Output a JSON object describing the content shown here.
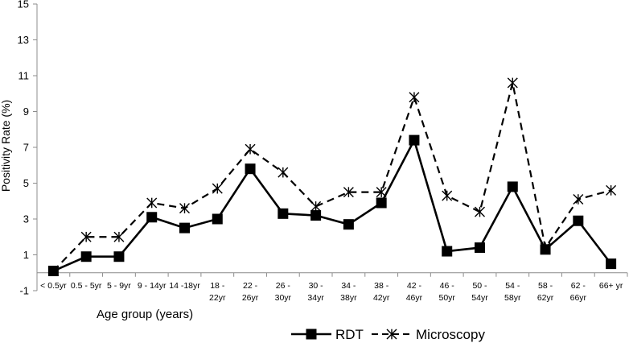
{
  "chart_data": {
    "type": "line",
    "title": "",
    "xlabel": "Age group (years)",
    "ylabel": "Positivity Rate (%)",
    "ylim": [
      -1,
      15
    ],
    "yticks": [
      -1,
      1,
      3,
      5,
      7,
      9,
      11,
      13,
      15
    ],
    "grid": false,
    "legend_position": "bottom",
    "categories": [
      [
        "< 0.5yr"
      ],
      [
        "0.5 - 5yr"
      ],
      [
        "5 - 9yr"
      ],
      [
        "9 - 14yr"
      ],
      [
        "14 -18yr"
      ],
      [
        "18 -",
        "22yr"
      ],
      [
        "22 -",
        "26yr"
      ],
      [
        "26 -",
        "30yr"
      ],
      [
        "30 -",
        "34yr"
      ],
      [
        "34 -",
        "38yr"
      ],
      [
        "38 -",
        "42yr"
      ],
      [
        "42 -",
        "46yr"
      ],
      [
        "46 -",
        "50yr"
      ],
      [
        "50 -",
        "54yr"
      ],
      [
        "54 -",
        "58yr"
      ],
      [
        "58 -",
        "62yr"
      ],
      [
        "62 -",
        "66yr"
      ],
      [
        "66+ yr"
      ]
    ],
    "series": [
      {
        "name": "RDT",
        "style": "solid",
        "marker": "square",
        "color": "#000000",
        "values": [
          0.1,
          0.9,
          0.9,
          3.1,
          2.5,
          3.0,
          5.8,
          3.3,
          3.2,
          2.7,
          3.9,
          7.4,
          1.2,
          1.4,
          4.8,
          1.3,
          2.9,
          0.5
        ]
      },
      {
        "name": "Microscopy",
        "style": "dashed",
        "marker": "asterisk",
        "color": "#000000",
        "values": [
          0.1,
          2.0,
          2.0,
          3.9,
          3.6,
          4.7,
          6.9,
          5.6,
          3.7,
          4.5,
          4.5,
          9.8,
          4.3,
          3.4,
          10.6,
          1.4,
          4.1,
          4.6
        ]
      }
    ]
  }
}
